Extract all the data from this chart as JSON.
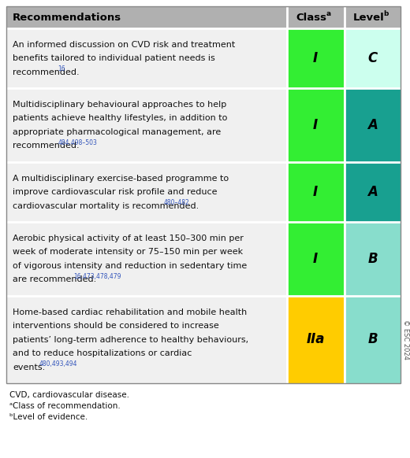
{
  "title": "Recommendations",
  "col_class": "Class",
  "col_class_super": "a",
  "col_level": "Level",
  "col_level_super": "b",
  "header_bg": "#b0b0b0",
  "header_text_color": "#000000",
  "row_bg": "#f0f0f0",
  "rows": [
    {
      "lines": [
        "An informed discussion on CVD risk and treatment",
        "benefits tailored to individual patient needs is",
        "recommended."
      ],
      "superscript": "16",
      "class_label": "I",
      "level_label": "C",
      "class_color": "#33ee33",
      "level_color": "#ccffee"
    },
    {
      "lines": [
        "Multidisciplinary behavioural approaches to help",
        "patients achieve healthy lifestyles, in addition to",
        "appropriate pharmacological management, are",
        "recommended."
      ],
      "superscript": "484,498–503",
      "class_label": "I",
      "level_label": "A",
      "class_color": "#33ee33",
      "level_color": "#18a090"
    },
    {
      "lines": [
        "A multidisciplinary exercise-based programme to",
        "improve cardiovascular risk profile and reduce",
        "cardiovascular mortality is recommended."
      ],
      "superscript": "480–482",
      "class_label": "I",
      "level_label": "A",
      "class_color": "#33ee33",
      "level_color": "#18a090"
    },
    {
      "lines": [
        "Aerobic physical activity of at least 150–300 min per",
        "week of moderate intensity or 75–150 min per week",
        "of vigorous intensity and reduction in sedentary time",
        "are recommended."
      ],
      "superscript": "16,473,478,479",
      "class_label": "I",
      "level_label": "B",
      "class_color": "#33ee33",
      "level_color": "#88ddcc"
    },
    {
      "lines": [
        "Home-based cardiac rehabilitation and mobile health",
        "interventions should be considered to increase",
        "patients’ long-term adherence to healthy behaviours,",
        "and to reduce hospitalizations or cardiac",
        "events."
      ],
      "superscript": "480,493,494",
      "class_label": "IIa",
      "level_label": "B",
      "class_color": "#ffcc00",
      "level_color": "#88ddcc"
    }
  ],
  "footer_lines": [
    "CVD, cardiovascular disease.",
    "ᵃClass of recommendation.",
    "ᵇLevel of evidence."
  ],
  "copyright": "© ESC 2024"
}
